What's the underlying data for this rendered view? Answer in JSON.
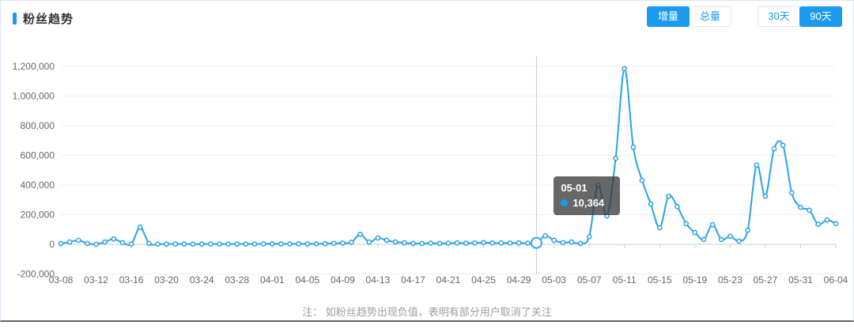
{
  "card": {
    "title": "粉丝趋势",
    "note": "注：  如粉丝趋势出现负值，表明有部分用户取消了关注"
  },
  "toggles": {
    "metric": [
      {
        "label": "增量",
        "active": true
      },
      {
        "label": "总量",
        "active": false
      }
    ],
    "range": [
      {
        "label": "30天",
        "active": false
      },
      {
        "label": "90天",
        "active": true
      }
    ]
  },
  "tooltip": {
    "date": "05-01",
    "value": "10,364"
  },
  "colors": {
    "accent": "#1b9bee",
    "line": "#2aa2e8",
    "grid": "#f0f0f0",
    "axis": "#cccccc",
    "axis_text": "#666666",
    "hover_line": "#cccccc",
    "tooltip_bg": "rgba(55,55,55,0.76)"
  },
  "chart_data": {
    "type": "line",
    "title": "粉丝趋势",
    "xlabel": "",
    "ylabel": "",
    "ylim": [
      -200000,
      1200000
    ],
    "y_ticks": [
      -200000,
      0,
      200000,
      400000,
      600000,
      800000,
      1000000,
      1200000
    ],
    "x_label_interval": 4,
    "grid": true,
    "smooth": true,
    "highlight": {
      "date": "05-01",
      "value": 10364,
      "display": "10,364"
    },
    "x": [
      "03-08",
      "03-09",
      "03-10",
      "03-11",
      "03-12",
      "03-13",
      "03-14",
      "03-15",
      "03-16",
      "03-17",
      "03-18",
      "03-19",
      "03-20",
      "03-21",
      "03-22",
      "03-23",
      "03-24",
      "03-25",
      "03-26",
      "03-27",
      "03-28",
      "03-29",
      "03-30",
      "03-31",
      "04-01",
      "04-02",
      "04-03",
      "04-04",
      "04-05",
      "04-06",
      "04-07",
      "04-08",
      "04-09",
      "04-10",
      "04-11",
      "04-12",
      "04-13",
      "04-14",
      "04-15",
      "04-16",
      "04-17",
      "04-18",
      "04-19",
      "04-20",
      "04-21",
      "04-22",
      "04-23",
      "04-24",
      "04-25",
      "04-26",
      "04-27",
      "04-28",
      "04-29",
      "04-30",
      "05-01",
      "05-02",
      "05-03",
      "05-04",
      "05-05",
      "05-06",
      "05-07",
      "05-08",
      "05-09",
      "05-10",
      "05-11",
      "05-12",
      "05-13",
      "05-14",
      "05-15",
      "05-16",
      "05-17",
      "05-18",
      "05-19",
      "05-20",
      "05-21",
      "05-22",
      "05-23",
      "05-24",
      "05-25",
      "05-26",
      "05-27",
      "05-28",
      "05-29",
      "05-30",
      "05-31",
      "06-01",
      "06-02",
      "06-03",
      "06-04"
    ],
    "values": [
      6000,
      16000,
      27000,
      6000,
      1000,
      16000,
      37000,
      11000,
      2000,
      115000,
      6000,
      1500,
      2000,
      2500,
      2000,
      1500,
      2000,
      2500,
      2000,
      2000,
      2500,
      2000,
      2500,
      3000,
      3500,
      3000,
      3000,
      3500,
      3000,
      3500,
      5000,
      7000,
      9000,
      14000,
      68000,
      16000,
      43000,
      27000,
      16000,
      10000,
      7000,
      6000,
      8000,
      6000,
      8000,
      10000,
      8000,
      10000,
      12000,
      9000,
      10000,
      9000,
      10000,
      8000,
      10364,
      58000,
      27000,
      11000,
      16000,
      6000,
      53000,
      400000,
      192000,
      580000,
      1185000,
      656000,
      432000,
      272000,
      112000,
      325000,
      255000,
      140000,
      80000,
      33000,
      133000,
      33000,
      55000,
      22000,
      96000,
      535000,
      325000,
      645000,
      668000,
      347000,
      250000,
      230000,
      135000,
      165000,
      140000
    ]
  }
}
